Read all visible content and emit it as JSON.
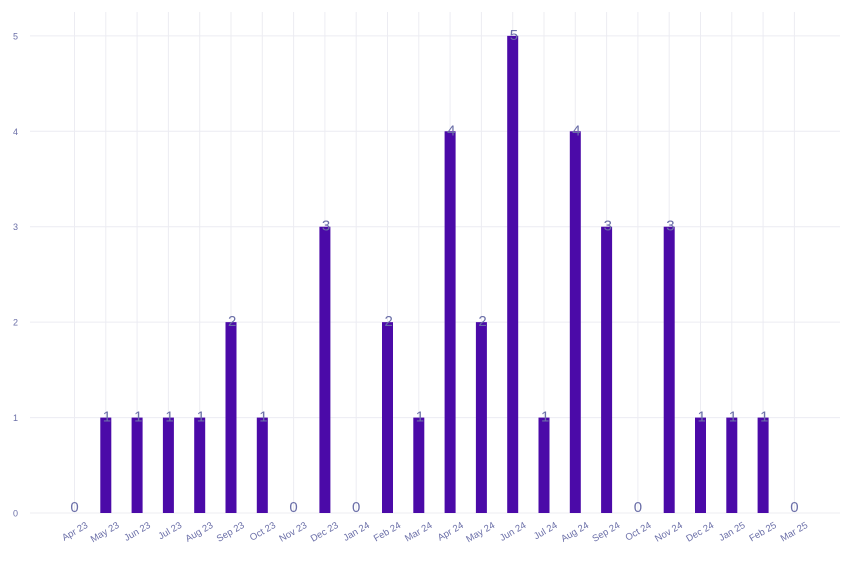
{
  "chart_data": {
    "type": "bar",
    "categories": [
      "Apr 23",
      "May 23",
      "Jun 23",
      "Jul 23",
      "Aug 23",
      "Sep 23",
      "Oct 23",
      "Nov 23",
      "Dec 23",
      "Jan 24",
      "Feb 24",
      "Mar 24",
      "Apr 24",
      "May 24",
      "Jun 24",
      "Jul 24",
      "Aug 24",
      "Sep 24",
      "Oct 24",
      "Nov 24",
      "Dec 24",
      "Jan 25",
      "Feb 25",
      "Mar 25"
    ],
    "values": [
      0,
      1,
      1,
      1,
      1,
      2,
      1,
      0,
      3,
      0,
      2,
      1,
      4,
      2,
      5,
      1,
      4,
      3,
      0,
      3,
      1,
      1,
      1,
      0
    ],
    "value_labels": [
      "0",
      "1",
      "1",
      "1",
      "1",
      "2",
      "1",
      "0",
      "3",
      "0",
      "2",
      "1",
      "4",
      "2",
      "5",
      "1",
      "4",
      "3",
      "0",
      "3",
      "1",
      "1",
      "1",
      "0"
    ],
    "y_ticks": [
      0,
      1,
      2,
      3,
      4,
      5
    ],
    "y_tick_labels": [
      "0",
      "1",
      "2",
      "3",
      "4",
      "5"
    ],
    "ylim": [
      0,
      5.25
    ],
    "title": "",
    "xlabel": "",
    "ylabel": "",
    "grid": true,
    "legend": "none",
    "colors": {
      "bar": "#4b0aa8",
      "label": "#6b6fa8",
      "axis_text": "#6b6fa8",
      "grid": "#ececf2"
    }
  }
}
